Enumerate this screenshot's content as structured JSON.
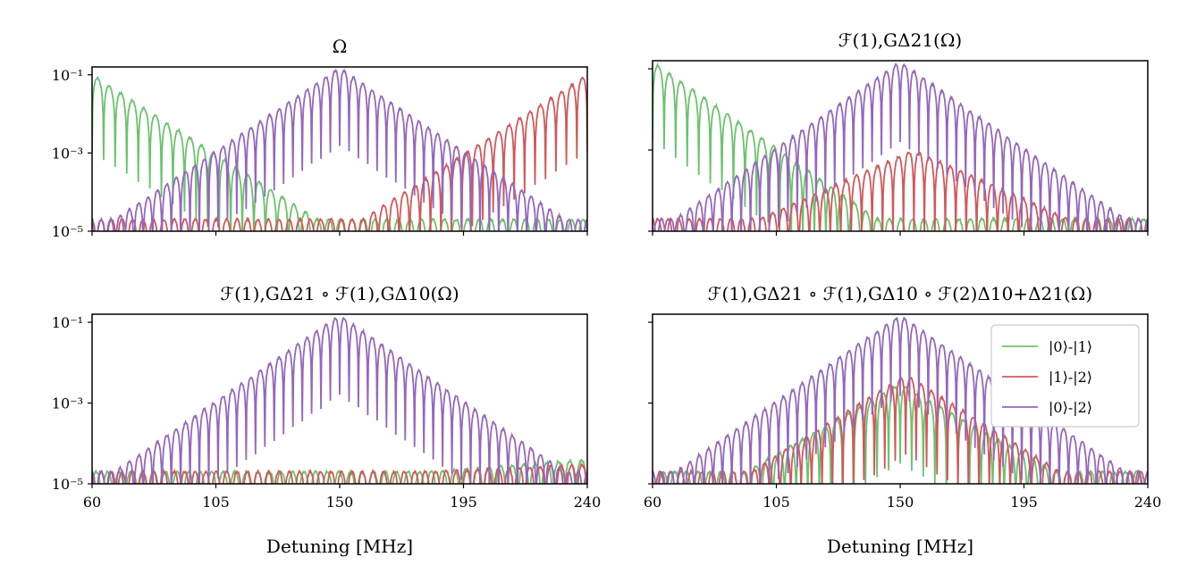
{
  "figure": {
    "colors": {
      "green": "#6cc26c",
      "red": "#d0595b",
      "purple": "#9467bd",
      "axis": "#000000"
    }
  },
  "chart_data": [
    {
      "type": "line",
      "title": "Ω",
      "xlabel": "",
      "ylabel": "",
      "xlim": [
        60,
        240
      ],
      "ylim_log10": [
        -5,
        -0.8
      ],
      "yticks": [
        "10⁻¹",
        "10⁻³",
        "10⁻⁵"
      ],
      "xticks": [],
      "series": [
        {
          "name": "|0⟩-|1⟩",
          "color": "#6cc26c",
          "peak": 0.1,
          "peak_x": 60,
          "floor_x": 240
        },
        {
          "name": "|1⟩-|2⟩",
          "color": "#d0595b",
          "peak": 0.1,
          "peak_x": 240,
          "floor_x": 60
        },
        {
          "name": "|0⟩-|2⟩",
          "color": "#9467bd",
          "peak": 0.15,
          "peak_x": 150,
          "floor_x": 60
        }
      ]
    },
    {
      "type": "line",
      "title": "ℱ(1),GΔ21(Ω)",
      "xlabel": "",
      "ylabel": "",
      "xlim": [
        60,
        240
      ],
      "ylim_log10": [
        -5,
        -0.8
      ],
      "yticks": [],
      "xticks": [],
      "series": [
        {
          "name": "|0⟩-|1⟩",
          "color": "#6cc26c",
          "peak": 0.15,
          "peak_x": 60,
          "floor_x": 240
        },
        {
          "name": "|1⟩-|2⟩",
          "color": "#d0595b",
          "peak": 0.001,
          "peak_x": 155,
          "floor_x": 240
        },
        {
          "name": "|0⟩-|2⟩",
          "color": "#9467bd",
          "peak": 0.15,
          "peak_x": 150,
          "floor_x": 60
        }
      ]
    },
    {
      "type": "line",
      "title": "ℱ(1),GΔ21 ∘ ℱ(1),GΔ10(Ω)",
      "xlabel": "Detuning [MHz]",
      "ylabel": "",
      "xlim": [
        60,
        240
      ],
      "ylim_log10": [
        -5,
        -0.8
      ],
      "yticks": [
        "10⁻¹",
        "10⁻³",
        "10⁻⁵"
      ],
      "xticks": [
        "60",
        "105",
        "150",
        "195",
        "240"
      ],
      "series": [
        {
          "name": "|0⟩-|1⟩",
          "color": "#6cc26c",
          "peak": 4e-05,
          "peak_x": 240,
          "floor_x": 60
        },
        {
          "name": "|1⟩-|2⟩",
          "color": "#d0595b",
          "peak": 3e-05,
          "peak_x": 240,
          "floor_x": 60
        },
        {
          "name": "|0⟩-|2⟩",
          "color": "#9467bd",
          "peak": 0.15,
          "peak_x": 150,
          "floor_x": 60
        }
      ]
    },
    {
      "type": "line",
      "title": "ℱ(1),GΔ21 ∘ ℱ(1),GΔ10 ∘ ℱ(2)Δ10+Δ21(Ω)",
      "xlabel": "Detuning [MHz]",
      "ylabel": "",
      "xlim": [
        60,
        240
      ],
      "ylim_log10": [
        -5,
        -0.8
      ],
      "yticks": [],
      "xticks": [
        "60",
        "105",
        "150",
        "195",
        "240"
      ],
      "legend": {
        "placement": "upper right",
        "entries": [
          "|0⟩-|1⟩",
          "|1⟩-|2⟩",
          "|0⟩-|2⟩"
        ]
      },
      "series": [
        {
          "name": "|0⟩-|1⟩",
          "color": "#6cc26c",
          "peak": 0.003,
          "peak_x": 150,
          "floor_x": 60
        },
        {
          "name": "|1⟩-|2⟩",
          "color": "#d0595b",
          "peak": 0.005,
          "peak_x": 152,
          "floor_x": 60
        },
        {
          "name": "|0⟩-|2⟩",
          "color": "#9467bd",
          "peak": 0.15,
          "peak_x": 150,
          "floor_x": 60
        }
      ]
    }
  ]
}
